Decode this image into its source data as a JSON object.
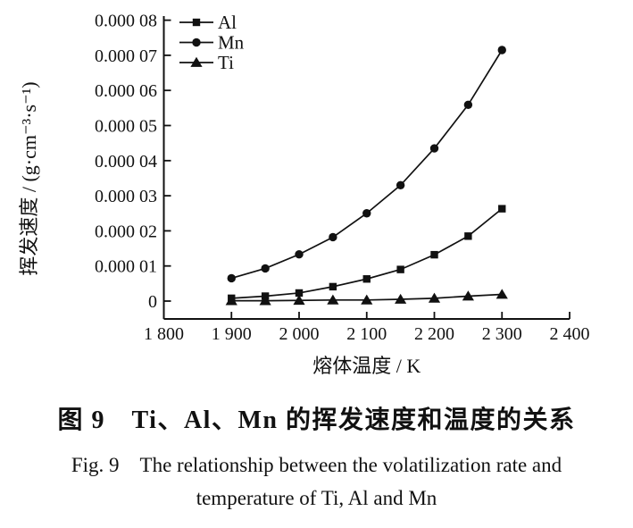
{
  "figure": {
    "caption_zh": "图 9　Ti、Al、Mn 的挥发速度和温度的关系",
    "caption_en_line1": "Fig. 9　The relationship between the volatilization rate and",
    "caption_en_line2": "temperature of Ti, Al and Mn"
  },
  "chart_data": {
    "type": "line",
    "title": "",
    "xlabel": "熔体温度 / K",
    "ylabel": "挥发速度 / (g·cm⁻³·s⁻¹)",
    "xlim": [
      1800,
      2400
    ],
    "ylim": [
      0,
      8e-05
    ],
    "grid": false,
    "legend_position": "top-left-inside",
    "line_color": "#111111",
    "x_ticks": [
      {
        "value": 1800,
        "label": "1 800"
      },
      {
        "value": 1900,
        "label": "1 900"
      },
      {
        "value": 2000,
        "label": "2 000"
      },
      {
        "value": 2100,
        "label": "2 100"
      },
      {
        "value": 2200,
        "label": "2 200"
      },
      {
        "value": 2300,
        "label": "2 300"
      },
      {
        "value": 2400,
        "label": "2 400"
      }
    ],
    "y_ticks": [
      {
        "value": 0,
        "label": "0"
      },
      {
        "value": 1e-05,
        "label": "0.000 01"
      },
      {
        "value": 2e-05,
        "label": "0.000 02"
      },
      {
        "value": 3e-05,
        "label": "0.000 03"
      },
      {
        "value": 4e-05,
        "label": "0.000 04"
      },
      {
        "value": 5e-05,
        "label": "0.000 05"
      },
      {
        "value": 6e-05,
        "label": "0.000 06"
      },
      {
        "value": 7e-05,
        "label": "0.000 07"
      },
      {
        "value": 8e-05,
        "label": "0.000 08"
      }
    ],
    "x": [
      1900,
      1950,
      2000,
      2050,
      2100,
      2150,
      2200,
      2250,
      2300
    ],
    "series": [
      {
        "name": "Al",
        "marker": "square",
        "values": [
          8e-07,
          1.4e-06,
          2.3e-06,
          4.1e-06,
          6.3e-06,
          9e-06,
          1.32e-05,
          1.85e-05,
          2.63e-05
        ]
      },
      {
        "name": "Mn",
        "marker": "circle",
        "values": [
          6.5e-06,
          9.3e-06,
          1.33e-05,
          1.82e-05,
          2.5e-05,
          3.3e-05,
          4.35e-05,
          5.59e-05,
          7.15e-05
        ]
      },
      {
        "name": "Ti",
        "marker": "triangle",
        "values": [
          1e-07,
          1e-07,
          2e-07,
          3e-07,
          3e-07,
          5e-07,
          8e-07,
          1.4e-06,
          1.9e-06
        ]
      }
    ]
  }
}
